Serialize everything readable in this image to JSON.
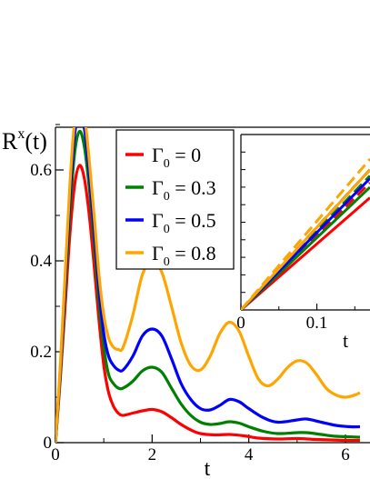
{
  "chart_data": [
    {
      "type": "line",
      "xlabel": "t",
      "ylabel": "R",
      "ylabel_superscript": "x",
      "ylabel_suffix": "(t)",
      "xlim": [
        0,
        6.3
      ],
      "ylim": [
        0,
        0.8
      ],
      "x_ticks": [
        0,
        2,
        4,
        6
      ],
      "x_tick_labels": [
        "0",
        "2",
        "4",
        "6"
      ],
      "y_ticks": [
        0,
        0.2,
        0.4,
        0.6
      ],
      "y_tick_labels": [
        "0",
        "0.2",
        "0.4",
        "0.6"
      ],
      "grid": false,
      "legend_position": "top-left",
      "series": [
        {
          "name": "Γ0 = 0",
          "legend_symbol": "Γ",
          "legend_subscript": "0",
          "legend_value": " = 0",
          "color": "#ff0000",
          "points": [
            [
              0,
              0
            ],
            [
              0.1,
              0.14
            ],
            [
              0.2,
              0.3
            ],
            [
              0.3,
              0.46
            ],
            [
              0.4,
              0.57
            ],
            [
              0.5,
              0.61
            ],
            [
              0.6,
              0.58
            ],
            [
              0.7,
              0.5
            ],
            [
              0.8,
              0.39
            ],
            [
              0.9,
              0.27
            ],
            [
              1.0,
              0.17
            ],
            [
              1.1,
              0.11
            ],
            [
              1.2,
              0.08
            ],
            [
              1.3,
              0.065
            ],
            [
              1.4,
              0.06
            ],
            [
              1.6,
              0.065
            ],
            [
              1.8,
              0.07
            ],
            [
              2.0,
              0.073
            ],
            [
              2.2,
              0.068
            ],
            [
              2.4,
              0.055
            ],
            [
              2.6,
              0.04
            ],
            [
              2.8,
              0.028
            ],
            [
              3.0,
              0.02
            ],
            [
              3.3,
              0.017
            ],
            [
              3.6,
              0.018
            ],
            [
              3.9,
              0.015
            ],
            [
              4.2,
              0.01
            ],
            [
              4.6,
              0.008
            ],
            [
              5.0,
              0.009
            ],
            [
              5.4,
              0.007
            ],
            [
              6.0,
              0.005
            ],
            [
              6.3,
              0.005
            ]
          ]
        },
        {
          "name": "Γ0 = 0.3",
          "legend_symbol": "Γ",
          "legend_subscript": "0",
          "legend_value": " = 0.3",
          "color": "#008000",
          "points": [
            [
              0,
              0
            ],
            [
              0.1,
              0.15
            ],
            [
              0.2,
              0.33
            ],
            [
              0.3,
              0.51
            ],
            [
              0.4,
              0.64
            ],
            [
              0.5,
              0.685
            ],
            [
              0.6,
              0.65
            ],
            [
              0.7,
              0.56
            ],
            [
              0.8,
              0.44
            ],
            [
              0.9,
              0.31
            ],
            [
              1.0,
              0.21
            ],
            [
              1.1,
              0.15
            ],
            [
              1.2,
              0.13
            ],
            [
              1.3,
              0.12
            ],
            [
              1.4,
              0.12
            ],
            [
              1.6,
              0.135
            ],
            [
              1.8,
              0.158
            ],
            [
              2.0,
              0.166
            ],
            [
              2.2,
              0.155
            ],
            [
              2.4,
              0.12
            ],
            [
              2.6,
              0.085
            ],
            [
              2.8,
              0.06
            ],
            [
              3.0,
              0.045
            ],
            [
              3.2,
              0.04
            ],
            [
              3.4,
              0.042
            ],
            [
              3.6,
              0.046
            ],
            [
              3.8,
              0.043
            ],
            [
              4.0,
              0.035
            ],
            [
              4.3,
              0.025
            ],
            [
              4.6,
              0.02
            ],
            [
              5.0,
              0.022
            ],
            [
              5.2,
              0.022
            ],
            [
              5.5,
              0.018
            ],
            [
              5.8,
              0.014
            ],
            [
              6.3,
              0.012
            ]
          ]
        },
        {
          "name": "Γ0 = 0.5",
          "legend_symbol": "Γ",
          "legend_subscript": "0",
          "legend_value": " = 0.5",
          "color": "#0000ff",
          "points": [
            [
              0,
              0
            ],
            [
              0.1,
              0.16
            ],
            [
              0.2,
              0.35
            ],
            [
              0.3,
              0.54
            ],
            [
              0.4,
              0.68
            ],
            [
              0.5,
              0.72
            ],
            [
              0.6,
              0.69
            ],
            [
              0.7,
              0.59
            ],
            [
              0.8,
              0.47
            ],
            [
              0.9,
              0.34
            ],
            [
              1.0,
              0.24
            ],
            [
              1.1,
              0.19
            ],
            [
              1.2,
              0.17
            ],
            [
              1.3,
              0.16
            ],
            [
              1.4,
              0.16
            ],
            [
              1.6,
              0.19
            ],
            [
              1.8,
              0.235
            ],
            [
              2.0,
              0.25
            ],
            [
              2.2,
              0.235
            ],
            [
              2.4,
              0.185
            ],
            [
              2.6,
              0.13
            ],
            [
              2.8,
              0.095
            ],
            [
              3.0,
              0.075
            ],
            [
              3.2,
              0.072
            ],
            [
              3.4,
              0.082
            ],
            [
              3.6,
              0.095
            ],
            [
              3.8,
              0.09
            ],
            [
              4.0,
              0.075
            ],
            [
              4.3,
              0.055
            ],
            [
              4.6,
              0.045
            ],
            [
              5.0,
              0.05
            ],
            [
              5.2,
              0.052
            ],
            [
              5.5,
              0.045
            ],
            [
              5.8,
              0.038
            ],
            [
              6.1,
              0.035
            ],
            [
              6.3,
              0.035
            ]
          ]
        },
        {
          "name": "Γ0 = 0.8",
          "legend_symbol": "Γ",
          "legend_subscript": "0",
          "legend_value": " = 0.8",
          "color": "#ffa500",
          "points": [
            [
              0,
              0
            ],
            [
              0.1,
              0.17
            ],
            [
              0.2,
              0.37
            ],
            [
              0.3,
              0.57
            ],
            [
              0.4,
              0.71
            ],
            [
              0.5,
              0.755
            ],
            [
              0.6,
              0.72
            ],
            [
              0.7,
              0.62
            ],
            [
              0.8,
              0.5
            ],
            [
              0.9,
              0.37
            ],
            [
              1.0,
              0.28
            ],
            [
              1.1,
              0.23
            ],
            [
              1.2,
              0.21
            ],
            [
              1.3,
              0.205
            ],
            [
              1.4,
              0.21
            ],
            [
              1.6,
              0.28
            ],
            [
              1.8,
              0.37
            ],
            [
              2.0,
              0.4
            ],
            [
              2.2,
              0.375
            ],
            [
              2.4,
              0.3
            ],
            [
              2.6,
              0.22
            ],
            [
              2.8,
              0.17
            ],
            [
              3.0,
              0.16
            ],
            [
              3.2,
              0.19
            ],
            [
              3.4,
              0.24
            ],
            [
              3.6,
              0.265
            ],
            [
              3.8,
              0.245
            ],
            [
              4.0,
              0.19
            ],
            [
              4.2,
              0.14
            ],
            [
              4.4,
              0.125
            ],
            [
              4.6,
              0.14
            ],
            [
              4.8,
              0.165
            ],
            [
              5.0,
              0.18
            ],
            [
              5.2,
              0.175
            ],
            [
              5.4,
              0.15
            ],
            [
              5.6,
              0.12
            ],
            [
              5.8,
              0.105
            ],
            [
              6.0,
              0.1
            ],
            [
              6.2,
              0.105
            ],
            [
              6.3,
              0.11
            ]
          ]
        }
      ]
    },
    {
      "type": "line",
      "xlabel": "t",
      "xlim": [
        0,
        0.17
      ],
      "ylim": [
        0,
        0.2
      ],
      "x_ticks": [
        0,
        0.1
      ],
      "x_tick_labels": [
        "0",
        "0.1"
      ],
      "grid": false,
      "series": [
        {
          "name": "Γ0 = 0",
          "color": "#ff0000",
          "solid": [
            [
              0,
              0
            ],
            [
              0.17,
              0.128
            ]
          ],
          "dashed": [
            [
              0,
              0
            ],
            [
              0.17,
              0.145
            ]
          ]
        },
        {
          "name": "Γ0 = 0.3",
          "color": "#008000",
          "solid": [
            [
              0,
              0
            ],
            [
              0.17,
              0.14
            ]
          ],
          "dashed": [
            [
              0,
              0
            ],
            [
              0.17,
              0.153
            ]
          ]
        },
        {
          "name": "Γ0 = 0.5",
          "color": "#0000ff",
          "solid": [
            [
              0,
              0
            ],
            [
              0.17,
              0.15
            ]
          ],
          "dashed": [
            [
              0,
              0
            ],
            [
              0.17,
              0.16
            ]
          ]
        },
        {
          "name": "Γ0 = 0.8",
          "color": "#ffa500",
          "solid": [
            [
              0,
              0
            ],
            [
              0.17,
              0.16
            ]
          ],
          "dashed": [
            [
              0,
              0
            ],
            [
              0.17,
              0.172
            ]
          ]
        }
      ]
    }
  ]
}
